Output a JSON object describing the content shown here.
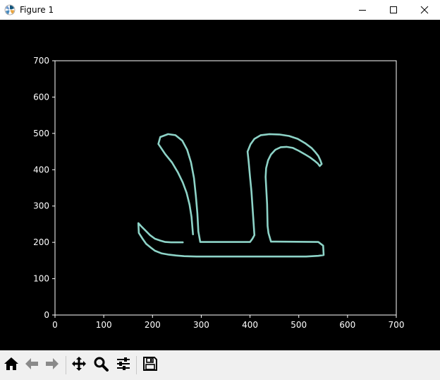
{
  "window": {
    "title": "Figure 1",
    "icons": {
      "app": "matplotlib-logo-icon",
      "minimize": "minimize-icon",
      "maximize": "maximize-icon",
      "close": "close-icon"
    }
  },
  "toolbar": {
    "buttons": [
      {
        "name": "home-button",
        "icon": "home-icon"
      },
      {
        "name": "back-button",
        "icon": "arrow-left-icon"
      },
      {
        "name": "forward-button",
        "icon": "arrow-right-icon"
      },
      {
        "name": "pan-button",
        "icon": "move-arrows-icon"
      },
      {
        "name": "zoom-button",
        "icon": "magnifier-icon"
      },
      {
        "name": "configure-subplots-button",
        "icon": "sliders-icon"
      },
      {
        "name": "save-button",
        "icon": "floppy-disk-icon"
      }
    ]
  },
  "chart_data": {
    "type": "line",
    "title": "",
    "xlabel": "",
    "ylabel": "",
    "xlim": [
      0,
      700
    ],
    "ylim": [
      0,
      700
    ],
    "xticks": [
      "0",
      "100",
      "200",
      "300",
      "400",
      "500",
      "600",
      "700"
    ],
    "yticks": [
      "0",
      "100",
      "200",
      "300",
      "400",
      "500",
      "600",
      "700"
    ],
    "grid": false,
    "colors": {
      "background": "#000000",
      "axes": "#ffffff",
      "line": "#8dd3c7"
    },
    "series": [
      {
        "x": [
          283,
          280,
          276,
          270,
          262,
          252,
          240,
          226,
          212,
          216,
          232,
          247,
          261,
          271,
          279,
          285,
          289,
          292,
          294,
          298,
          309,
          400,
          405,
          409,
          406,
          403,
          400,
          397,
          395,
          401,
          409,
          422,
          440,
          460,
          480,
          498,
          513,
          526,
          533,
          540,
          544,
          547,
          543,
          539,
          532,
          523,
          512,
          500,
          488,
          475,
          463,
          452,
          443,
          437,
          433,
          432,
          433,
          435,
          436,
          438,
          443,
          453,
          540,
          550,
          551,
          540,
          515,
          490,
          465,
          440,
          415,
          390,
          365,
          340,
          315,
          290,
          265,
          248,
          234,
          218,
          205,
          196,
          187,
          180,
          172,
          171,
          177,
          186,
          195,
          205,
          216,
          226,
          238,
          250,
          262
        ],
        "y": [
          222,
          270,
          304,
          336,
          365,
          393,
          420,
          443,
          471,
          490,
          498,
          495,
          480,
          455,
          420,
          377,
          327,
          280,
          230,
          201,
          201,
          201,
          210,
          220,
          280,
          340,
          380,
          425,
          450,
          470,
          485,
          495,
          498,
          497,
          493,
          485,
          473,
          460,
          450,
          438,
          427,
          416,
          410,
          417,
          425,
          434,
          443,
          452,
          460,
          463,
          462,
          455,
          442,
          426,
          404,
          380,
          355,
          305,
          245,
          225,
          202,
          202,
          201,
          191,
          165,
          163,
          161,
          161,
          161,
          161,
          161,
          161,
          161,
          161,
          161,
          161,
          162,
          164,
          166,
          170,
          177,
          186,
          196,
          209,
          226,
          253,
          244,
          232,
          220,
          210,
          205,
          201,
          200,
          200,
          200
        ]
      }
    ]
  }
}
